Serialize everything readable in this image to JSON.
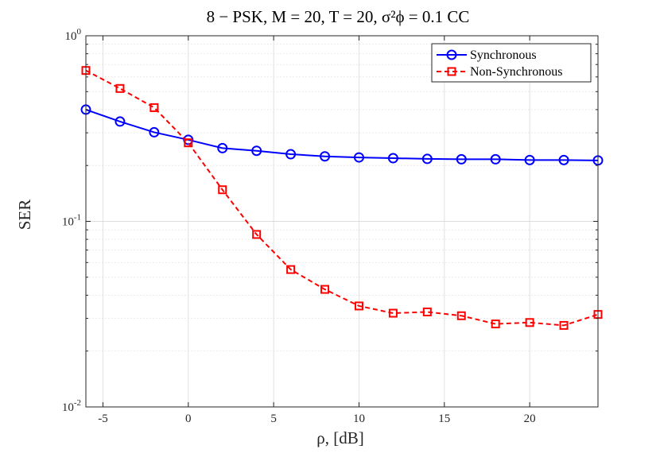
{
  "chart_data": {
    "type": "line",
    "title": "8 − PSK, M = 20, T = 20, σ²ϕ = 0.1 CC",
    "xlabel": "ρ, [dB]",
    "ylabel": "SER",
    "y_scale": "log",
    "xlim": [
      -6,
      24
    ],
    "ylim": [
      0.01,
      1
    ],
    "x_ticks": [
      -5,
      0,
      5,
      10,
      15,
      20
    ],
    "x_tick_labels": [
      "-5",
      "0",
      "5",
      "10",
      "15",
      "20"
    ],
    "y_ticks": [
      0.01,
      0.1,
      1
    ],
    "y_tick_labels": [
      {
        "base": "10",
        "exp": "-2"
      },
      {
        "base": "10",
        "exp": "-1"
      },
      {
        "base": "10",
        "exp": "0"
      }
    ],
    "grid": true,
    "legend_position": "top-right",
    "x": [
      -6,
      -4,
      -2,
      0,
      2,
      4,
      6,
      8,
      10,
      12,
      14,
      16,
      18,
      20,
      22,
      24
    ],
    "series": [
      {
        "name": "Synchronous",
        "color": "#0000ff",
        "marker": "circle",
        "line_style": "solid",
        "values": [
          0.4,
          0.345,
          0.302,
          0.275,
          0.248,
          0.24,
          0.23,
          0.224,
          0.221,
          0.219,
          0.217,
          0.216,
          0.216,
          0.214,
          0.214,
          0.213
        ]
      },
      {
        "name": "Non-Synchronous",
        "color": "#ff0000",
        "marker": "square",
        "line_style": "dashed",
        "values": [
          0.65,
          0.52,
          0.41,
          0.265,
          0.148,
          0.085,
          0.055,
          0.043,
          0.035,
          0.032,
          0.0325,
          0.031,
          0.028,
          0.0285,
          0.0275,
          0.0315
        ]
      }
    ]
  }
}
